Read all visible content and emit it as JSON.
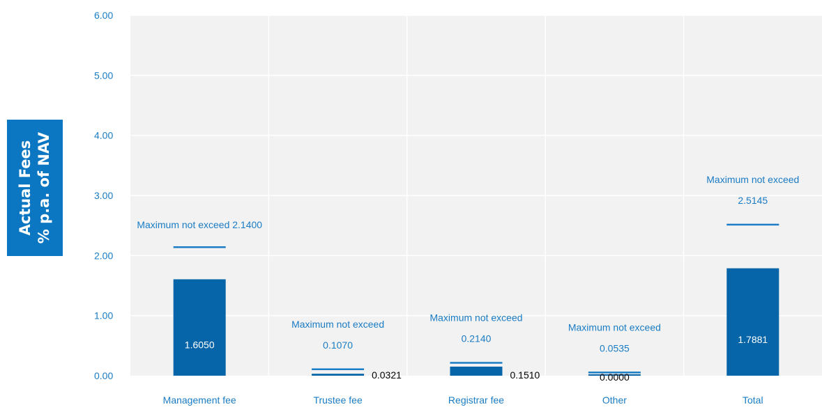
{
  "chart_data": {
    "type": "bar",
    "ylabel_lines": [
      "Actual Fees",
      "% p.a. of  NAV"
    ],
    "ylim": [
      0,
      6
    ],
    "yticks": [
      "0.00",
      "1.00",
      "2.00",
      "3.00",
      "4.00",
      "5.00",
      "6.00"
    ],
    "grid": true,
    "categories": [
      "Management fee",
      "Trustee fee",
      "Registrar fee",
      "Other",
      "Total"
    ],
    "series": [
      {
        "values": [
          1.605,
          0.0321,
          0.151,
          0.0,
          1.7881
        ]
      }
    ],
    "value_labels": [
      "1.6050",
      "0.0321",
      "0.1510",
      "0.0000",
      "1.7881"
    ],
    "maximums": [
      2.14,
      0.107,
      0.214,
      0.0535,
      2.5145
    ],
    "max_label_lines": [
      [
        "Maximum not exceed 2.1400"
      ],
      [
        "Maximum not exceed",
        "0.1070"
      ],
      [
        "Maximum not exceed",
        "0.2140"
      ],
      [
        "Maximum not exceed",
        "0.0535"
      ],
      [
        "Maximum not exceed",
        "2.5145"
      ]
    ],
    "colors": {
      "bar": "#0565a8",
      "max_line": "#1a7cc4",
      "text_blue": "#1a7cc4",
      "plot_bg": "#f2f2f2",
      "grid": "#ffffff",
      "ylabel_bg": "#0b77c2"
    }
  }
}
